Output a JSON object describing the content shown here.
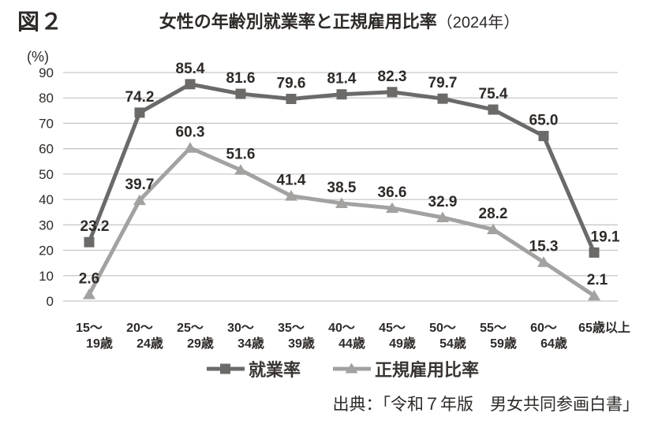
{
  "figure_label": "図２",
  "header": {
    "title": "女性の年齢別就業率と正規雇用比率",
    "year_suffix": "（2024年）"
  },
  "y_axis": {
    "unit": "(%)"
  },
  "legend": {
    "items": [
      {
        "label": "就業率"
      },
      {
        "label": "正規雇用比率"
      }
    ]
  },
  "source": "出典：「令和７年版　男女共同参画白書」",
  "colors": {
    "employment_series": "#6c6a69",
    "regular_series": "#a3a2a1",
    "gridline": "#c9c8c7",
    "label_text": "#2e2a28"
  },
  "chart_data": {
    "type": "line",
    "title": "女性の年齢別就業率と正規雇用比率（2024年）",
    "categories": [
      "15〜19歳",
      "20〜24歳",
      "25〜29歳",
      "30〜34歳",
      "35〜39歳",
      "40〜44歳",
      "45〜49歳",
      "50〜54歳",
      "55〜59歳",
      "60〜64歳",
      "65歳以上"
    ],
    "category_lines": [
      [
        "15〜",
        "19歳"
      ],
      [
        "20〜",
        "24歳"
      ],
      [
        "25〜",
        "29歳"
      ],
      [
        "30〜",
        "34歳"
      ],
      [
        "35〜",
        "39歳"
      ],
      [
        "40〜",
        "44歳"
      ],
      [
        "45〜",
        "49歳"
      ],
      [
        "50〜",
        "54歳"
      ],
      [
        "55〜",
        "59歳"
      ],
      [
        "60〜",
        "64歳"
      ],
      [
        "65歳以上",
        ""
      ]
    ],
    "series": [
      {
        "name": "就業率",
        "marker": "square",
        "color": "#6c6a69",
        "values": [
          23.2,
          74.2,
          85.4,
          81.6,
          79.6,
          81.4,
          82.3,
          79.7,
          75.4,
          65.0,
          19.1
        ]
      },
      {
        "name": "正規雇用比率",
        "marker": "triangle",
        "color": "#a3a2a1",
        "values": [
          2.6,
          39.7,
          60.3,
          51.6,
          41.4,
          38.5,
          36.6,
          32.9,
          28.2,
          15.3,
          2.1
        ]
      }
    ],
    "ylim": [
      0,
      90
    ],
    "y_ticks": [
      0,
      10,
      20,
      30,
      40,
      50,
      60,
      70,
      80,
      90
    ],
    "xlabel": "",
    "ylabel": "(%)",
    "grid": true,
    "legend_position": "bottom"
  }
}
